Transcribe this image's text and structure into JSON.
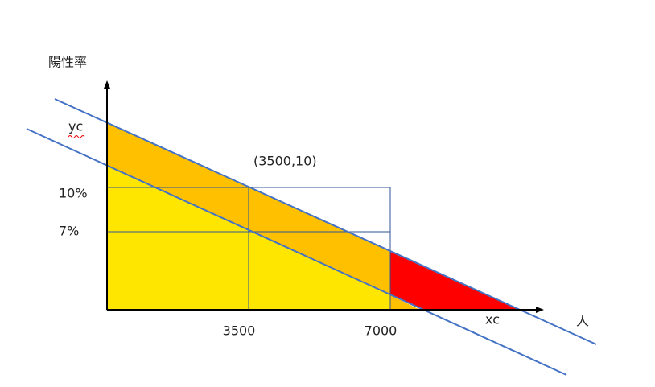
{
  "axis": {
    "y_label": "陽性率",
    "x_label": "人",
    "y_intercept": "yc",
    "x_intercept": "xc"
  },
  "y_ticks": [
    "10%",
    "7%"
  ],
  "x_ticks": [
    "3500",
    "7000"
  ],
  "point_label": "(3500,10)"
}
